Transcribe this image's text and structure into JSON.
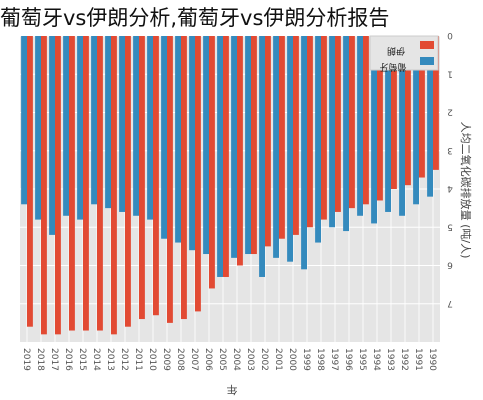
{
  "banner": {
    "text": "葡萄牙vs伊朗分析,葡萄牙vs伊朗分析报告"
  },
  "chart_data": {
    "type": "bar",
    "orientation": "rotated-180",
    "title": "",
    "xlabel": "年",
    "ylabel": "人均二氧化碳排放量 (吨/人)",
    "ylim": [
      0,
      8
    ],
    "yticks": [
      0,
      1,
      2,
      3,
      4,
      5,
      6,
      7
    ],
    "grid": true,
    "legend_position": "top-right",
    "categories": [
      "1990",
      "1991",
      "1992",
      "1993",
      "1994",
      "1995",
      "1996",
      "1997",
      "1998",
      "1999",
      "2000",
      "2001",
      "2002",
      "2003",
      "2004",
      "2005",
      "2006",
      "2007",
      "2008",
      "2009",
      "2010",
      "2011",
      "2012",
      "2013",
      "2014",
      "2015",
      "2016",
      "2017",
      "2018",
      "2019"
    ],
    "series": [
      {
        "name": "伊朗",
        "color": "#e24a33",
        "values": [
          3.5,
          3.7,
          3.9,
          4.0,
          4.3,
          4.4,
          4.5,
          4.6,
          4.8,
          5.0,
          5.2,
          5.3,
          5.5,
          5.7,
          6.0,
          6.3,
          6.6,
          7.2,
          7.4,
          7.5,
          7.3,
          7.4,
          7.6,
          7.8,
          7.7,
          7.7,
          7.7,
          7.8,
          7.8,
          7.6
        ],
        "colors_visible": true
      },
      {
        "name": "葡萄牙",
        "color": "#348abd",
        "values": [
          4.2,
          4.4,
          4.7,
          4.6,
          4.9,
          4.7,
          5.1,
          5.0,
          5.4,
          6.1,
          5.9,
          5.8,
          6.3,
          5.7,
          5.8,
          6.3,
          5.7,
          5.6,
          5.4,
          5.3,
          4.8,
          4.7,
          4.6,
          4.5,
          4.4,
          4.8,
          4.7,
          5.2,
          4.8,
          4.4
        ]
      }
    ]
  }
}
